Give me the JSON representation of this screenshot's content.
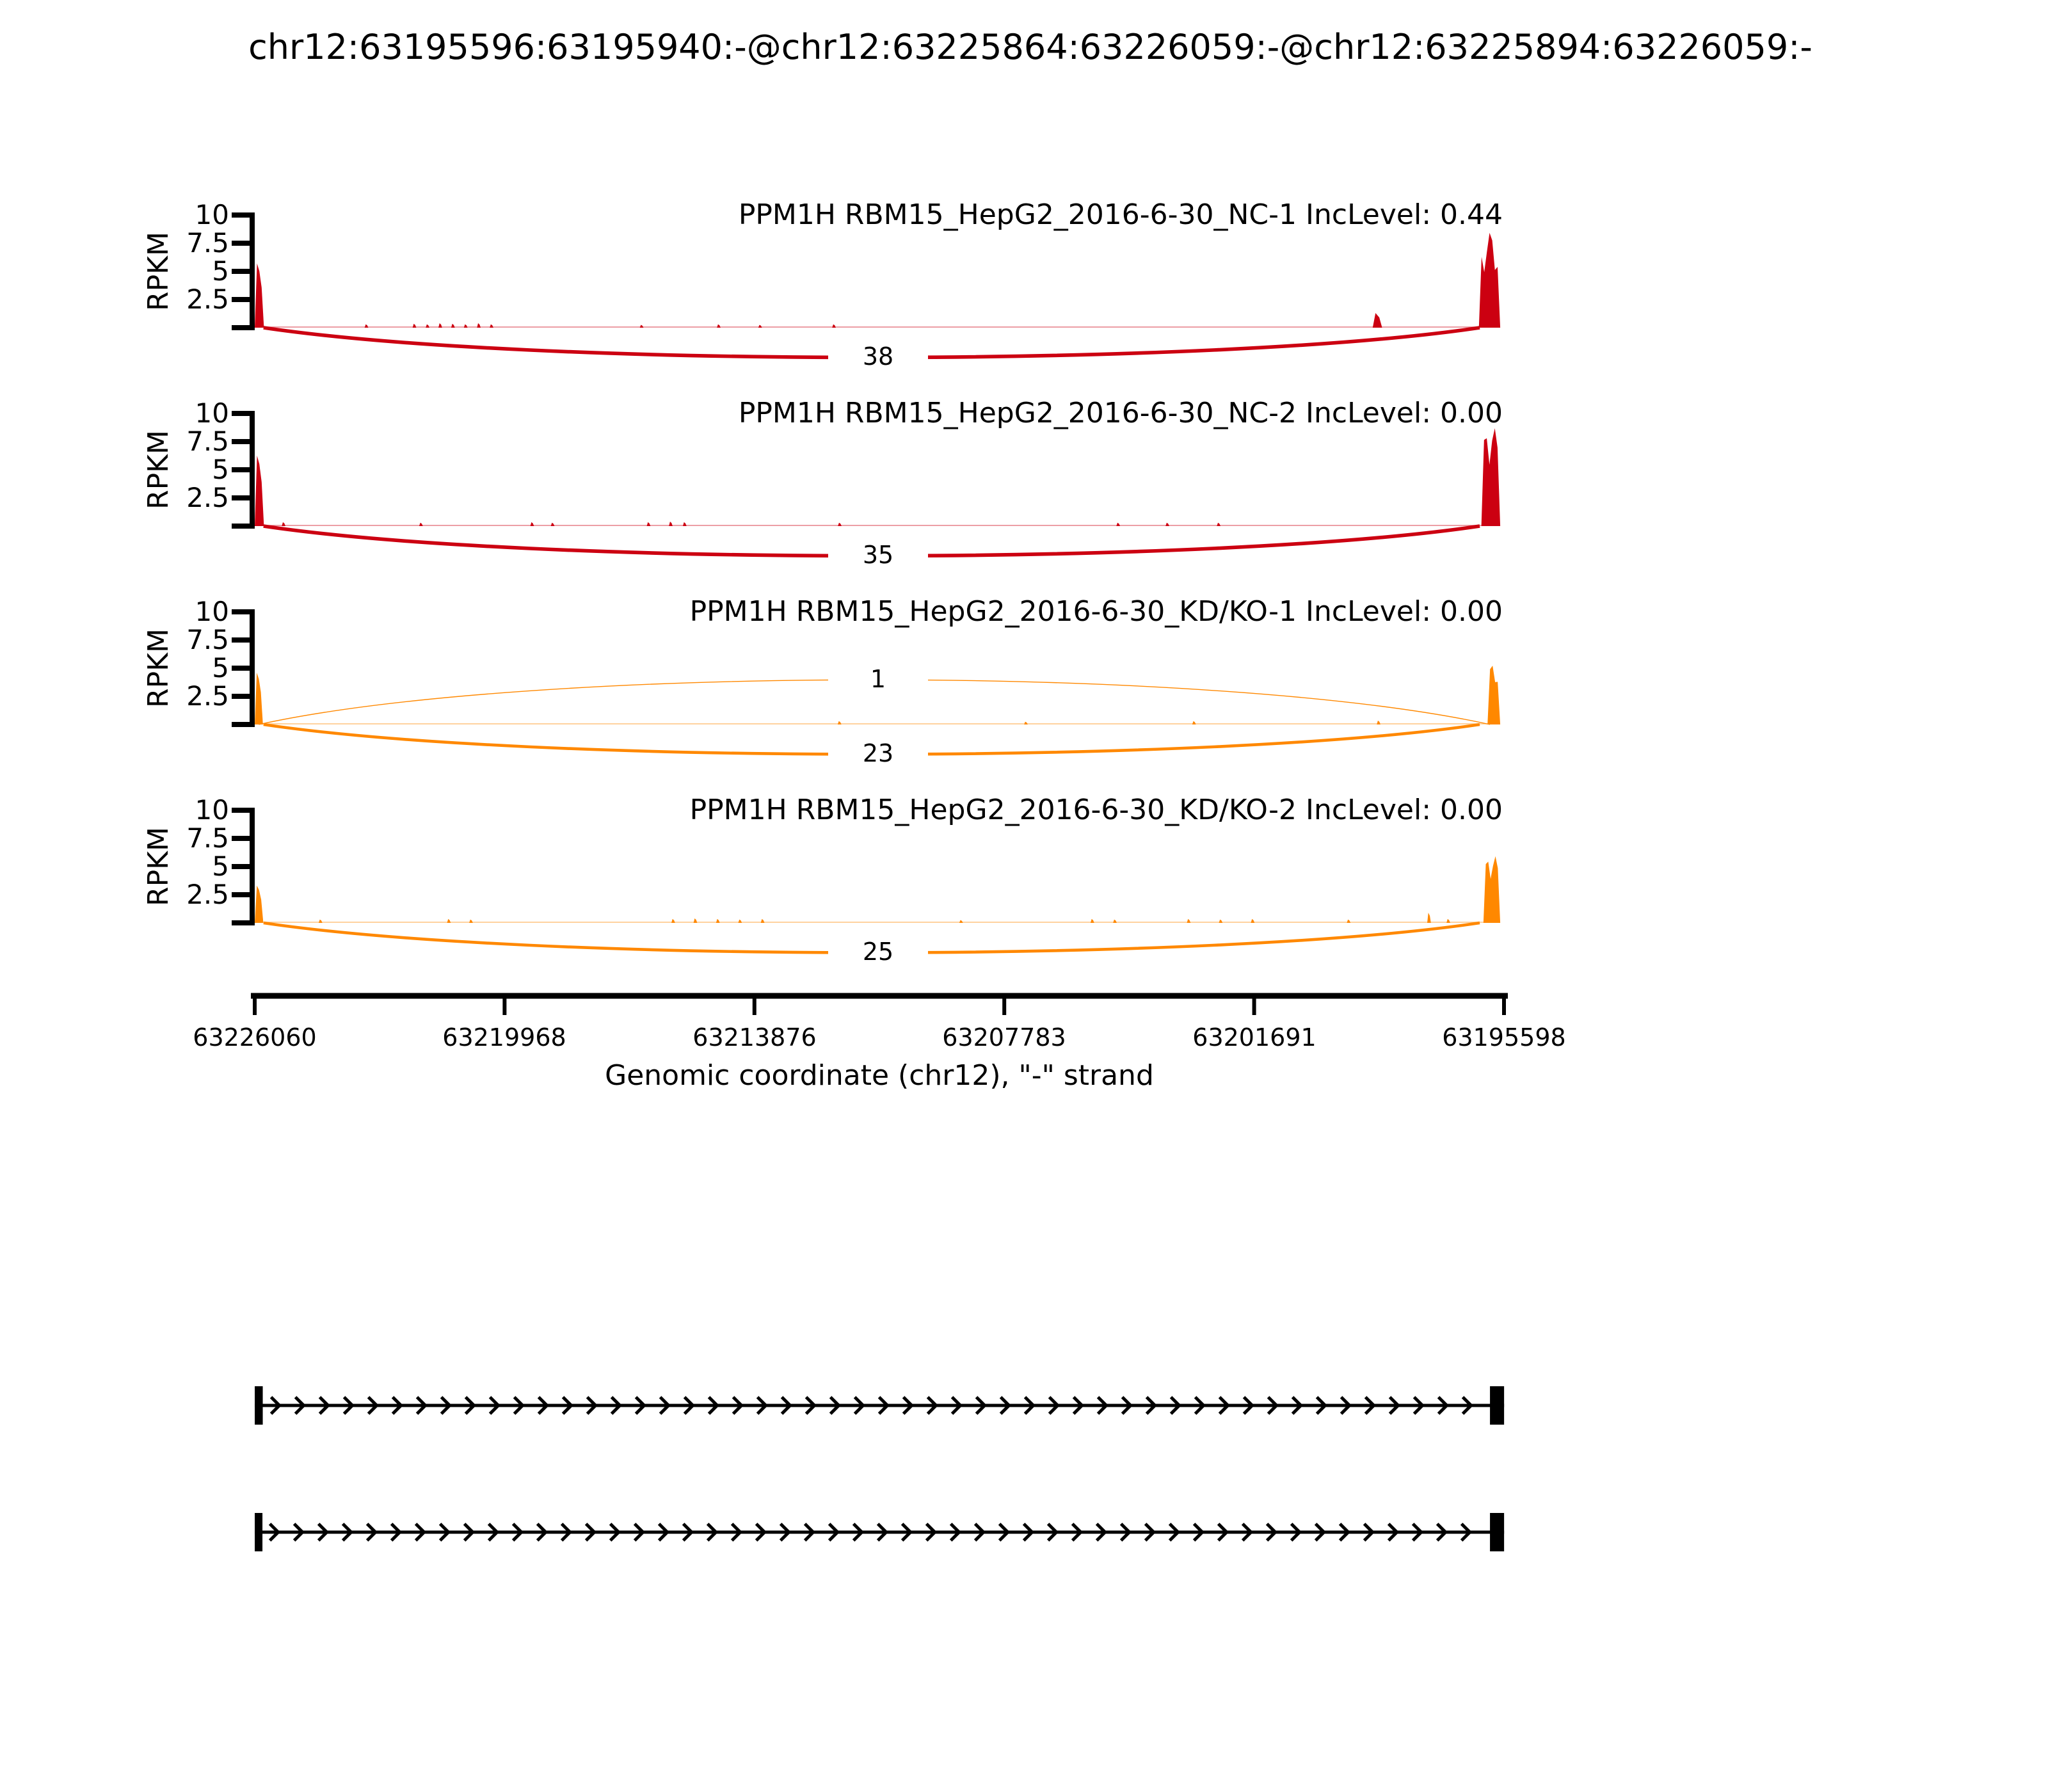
{
  "title": "chr12:63195596:63195940:-@chr12:63225864:63226059:-@chr12:63225894:63226059:-",
  "chart_data": {
    "type": "area",
    "title": "chr12:63195596:63195940:-@chr12:63225864:63226059:-@chr12:63225894:63226059:-",
    "y_axis": {
      "label": "RPKM",
      "ticks": [
        "10",
        "7.5",
        "5",
        "2.5"
      ],
      "range": [
        0,
        10
      ]
    },
    "x_axis": {
      "label": "Genomic coordinate (chr12), \"-\" strand",
      "ticks": [
        "63226060",
        "63219968",
        "63213876",
        "63207783",
        "63201691",
        "63195598"
      ],
      "range": [
        63226060,
        63195598
      ]
    },
    "colors": {
      "nc_red": "#CC0011",
      "kd_orange": "#FF8800"
    },
    "tracks": [
      {
        "label": "PPM1H RBM15_HepG2_2016-6-30_NC-1 IncLevel: 0.44",
        "sample": "NC-1",
        "inc_level": "0.44",
        "color": "#CC0011",
        "peaks": [
          {
            "s": 63226060,
            "e": 63225835,
            "h": 6.2
          },
          {
            "s": 63196210,
            "e": 63195690,
            "h": 8.5
          }
        ],
        "blips": [
          [
            63223380,
            0.3
          ],
          [
            63222210,
            0.35
          ],
          [
            63221890,
            0.3
          ],
          [
            63221580,
            0.4
          ],
          [
            63221270,
            0.35
          ],
          [
            63220960,
            0.3
          ],
          [
            63220640,
            0.4
          ],
          [
            63220330,
            0.3
          ],
          [
            63216670,
            0.25
          ],
          [
            63214790,
            0.3
          ],
          [
            63213780,
            0.25
          ],
          [
            63211980,
            0.3
          ],
          [
            63198800,
            1.3,
            230
          ]
        ],
        "junctions": [
          {
            "count": "38",
            "from": 63225845,
            "to": 63196190,
            "side": "below"
          }
        ]
      },
      {
        "label": "PPM1H RBM15_HepG2_2016-6-30_NC-2 IncLevel: 0.00",
        "sample": "NC-2",
        "inc_level": "0.00",
        "color": "#CC0011",
        "peaks": [
          {
            "s": 63226060,
            "e": 63225835,
            "h": 6.8
          },
          {
            "s": 63196150,
            "e": 63195690,
            "h": 9.2
          }
        ],
        "blips": [
          [
            63225400,
            0.35
          ],
          [
            63222050,
            0.3
          ],
          [
            63219340,
            0.35
          ],
          [
            63218840,
            0.3
          ],
          [
            63216500,
            0.35
          ],
          [
            63215960,
            0.4
          ],
          [
            63215620,
            0.35
          ],
          [
            63211840,
            0.3
          ],
          [
            63205050,
            0.3
          ],
          [
            63203850,
            0.3
          ],
          [
            63202600,
            0.3
          ]
        ],
        "junctions": [
          {
            "count": "35",
            "from": 63225845,
            "to": 63196190,
            "side": "below"
          }
        ]
      },
      {
        "label": "PPM1H RBM15_HepG2_2016-6-30_KD/KO-1 IncLevel: 0.00",
        "sample": "KD/KO-1",
        "inc_level": "0.00",
        "color": "#FF8800",
        "peaks": [
          {
            "s": 63226060,
            "e": 63225860,
            "h": 5.0
          },
          {
            "s": 63196000,
            "e": 63195690,
            "h": 5.6
          }
        ],
        "blips": [
          [
            63211845,
            0.3
          ],
          [
            63207300,
            0.25
          ],
          [
            63203200,
            0.3
          ],
          [
            63198700,
            0.35
          ]
        ],
        "junctions": [
          {
            "count": "1",
            "from": 63225960,
            "to": 63195940,
            "side": "above"
          },
          {
            "count": "23",
            "from": 63225845,
            "to": 63196190,
            "side": "below"
          }
        ]
      },
      {
        "label": "PPM1H RBM15_HepG2_2016-6-30_KD/KO-2 IncLevel: 0.00",
        "sample": "KD/KO-2",
        "inc_level": "0.00",
        "color": "#FF8800",
        "peaks": [
          {
            "s": 63226060,
            "e": 63225850,
            "h": 3.6
          },
          {
            "s": 63196100,
            "e": 63195690,
            "h": 6.3
          }
        ],
        "blips": [
          [
            63224500,
            0.3
          ],
          [
            63221370,
            0.35
          ],
          [
            63220830,
            0.3
          ],
          [
            63215900,
            0.35
          ],
          [
            63215360,
            0.4
          ],
          [
            63214810,
            0.35
          ],
          [
            63214270,
            0.3
          ],
          [
            63213720,
            0.35
          ],
          [
            63208880,
            0.25
          ],
          [
            63205680,
            0.35
          ],
          [
            63205130,
            0.3
          ],
          [
            63203330,
            0.35
          ],
          [
            63202550,
            0.3
          ],
          [
            63201770,
            0.35
          ],
          [
            63199430,
            0.3
          ],
          [
            63197470,
            0.9
          ],
          [
            63197000,
            0.35
          ]
        ],
        "junctions": [
          {
            "count": "25",
            "from": 63225845,
            "to": 63196190,
            "side": "below"
          }
        ]
      }
    ],
    "isoforms": [
      {
        "strand": "-",
        "exons": [
          [
            63226059,
            63225864
          ],
          [
            63195940,
            63195596
          ]
        ]
      },
      {
        "strand": "-",
        "exons": [
          [
            63226059,
            63225894
          ],
          [
            63195940,
            63195596
          ]
        ]
      }
    ]
  }
}
